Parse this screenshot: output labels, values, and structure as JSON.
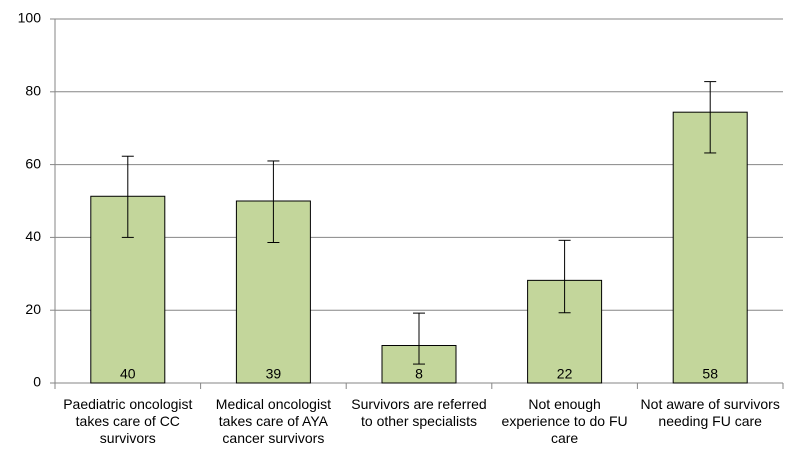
{
  "chart_data": {
    "type": "bar",
    "categories": [
      "Paediatric oncologist takes care of CC survivors",
      "Medical oncologist takes care of AYA cancer survivors",
      "Survivors are referred to other specialists",
      "Not enough experience to do FU care",
      "Not aware of survivors needing FU care"
    ],
    "values": [
      51.3,
      50,
      10.3,
      28.2,
      74.4
    ],
    "error_low": [
      40,
      38.6,
      5.2,
      19.3,
      63.2
    ],
    "error_high": [
      62.3,
      61,
      19.2,
      39.2,
      82.8
    ],
    "bar_labels": [
      40,
      39,
      8,
      22,
      58
    ],
    "color": "#c3d69b",
    "ylim": [
      0,
      100
    ],
    "yticks": [
      0,
      20,
      40,
      60,
      80,
      100
    ],
    "grid": true
  }
}
